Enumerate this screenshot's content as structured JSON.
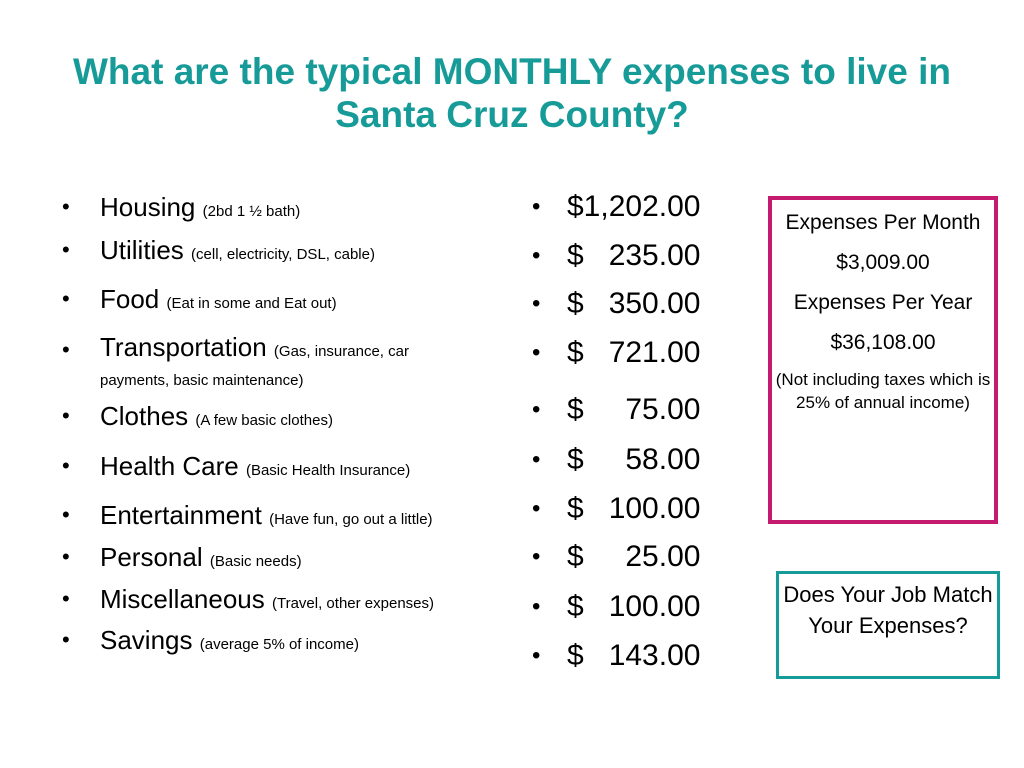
{
  "title": "What are the typical MONTHLY expenses to live in Santa Cruz County?",
  "bullet_char": "•",
  "expenses": [
    {
      "label": "Housing",
      "note": "(2bd 1 ½ bath)"
    },
    {
      "label": "Utilities",
      "note": "(cell, electricity, DSL, cable)"
    },
    {
      "label": "Food",
      "note": "(Eat in some and Eat out)"
    },
    {
      "label": "Transportation",
      "note": "(Gas, insurance, car payments, basic maintenance)"
    },
    {
      "label": "Clothes",
      "note": "(A few basic clothes)"
    },
    {
      "label": "Health Care",
      "note": "(Basic Health Insurance)"
    },
    {
      "label": "Entertainment",
      "note": "(Have fun, go out a little)"
    },
    {
      "label": "Personal",
      "note": "(Basic needs)"
    },
    {
      "label": "Miscellaneous",
      "note": "(Travel, other expenses)"
    },
    {
      "label": "Savings",
      "note": "(average 5% of income)"
    }
  ],
  "amounts": [
    "$1,202.00",
    "$   235.00",
    "$   350.00",
    "$   721.00",
    "$     75.00",
    "$     58.00",
    "$   100.00",
    "$     25.00",
    "$   100.00",
    "$   143.00"
  ],
  "summary_box": {
    "monthly_label": "Expenses Per Month",
    "monthly_value": "$3,009.00",
    "yearly_label": "Expenses Per Year",
    "yearly_value": "$36,108.00",
    "note": "(Not including taxes which is 25% of annual income)"
  },
  "question_box": {
    "text": "Does Your Job Match Your Expenses?"
  },
  "colors": {
    "title": "#169b98",
    "summary_border": "#c41a70",
    "question_border": "#169b98"
  }
}
